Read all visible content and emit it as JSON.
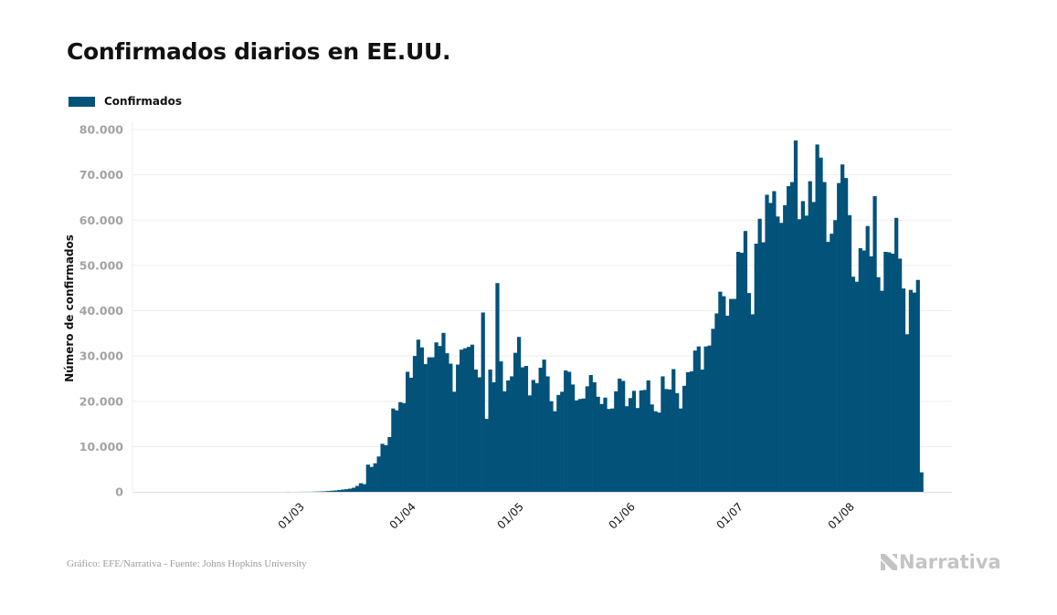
{
  "header": {
    "title": "Confirmados diarios en EE.UU."
  },
  "legend": {
    "label": "Confirmados",
    "color": "#02527a"
  },
  "footer": {
    "source": "Gráfico: EFE/Narrativa - Fuente: Johns Hopkins University",
    "brand": "Narrativa"
  },
  "chart_data": {
    "type": "bar",
    "title": "Confirmados diarios en EE.UU.",
    "xlabel": "",
    "ylabel": "Número de confirmados",
    "ylim": [
      0,
      80000
    ],
    "yticks": [
      0,
      10000,
      20000,
      30000,
      40000,
      50000,
      60000,
      70000,
      80000
    ],
    "ytick_labels": [
      "0",
      "10.000",
      "20.000",
      "30.000",
      "40.000",
      "50.000",
      "60.000",
      "70.000",
      "80.000"
    ],
    "x_start": "2020-01-22",
    "x_domain": [
      "2020-01-13",
      "2020-08-28"
    ],
    "xticks": [
      "2020-03-01",
      "2020-04-01",
      "2020-05-01",
      "2020-06-01",
      "2020-07-01",
      "2020-08-01"
    ],
    "xtick_labels": [
      "01/03",
      "01/04",
      "01/05",
      "01/06",
      "01/07",
      "01/08"
    ],
    "grid": true,
    "legend_position": "top-left",
    "series": [
      {
        "name": "Confirmados",
        "color": "#02527a",
        "values": [
          1,
          0,
          1,
          0,
          3,
          0,
          0,
          1,
          0,
          2,
          1,
          0,
          3,
          0,
          0,
          0,
          0,
          1,
          0,
          0,
          0,
          1,
          0,
          0,
          0,
          0,
          0,
          2,
          0,
          0,
          0,
          0,
          0,
          0,
          19,
          1,
          5,
          9,
          18,
          18,
          25,
          50,
          60,
          100,
          120,
          180,
          240,
          300,
          380,
          500,
          570,
          700,
          900,
          1300,
          1900,
          1700,
          6000,
          5500,
          6300,
          7800,
          10600,
          10300,
          12100,
          18400,
          18000,
          19800,
          19600,
          26500,
          25200,
          30000,
          33600,
          31900,
          28200,
          29700,
          29700,
          33000,
          32200,
          35100,
          30600,
          28300,
          22100,
          28100,
          31400,
          31700,
          32000,
          32500,
          27000,
          25300,
          39600,
          16100,
          27000,
          24200,
          46100,
          28800,
          22200,
          24600,
          25500,
          30700,
          34200,
          27500,
          27800,
          21300,
          24700,
          24000,
          27400,
          29200,
          25500,
          20000,
          17800,
          21400,
          22100,
          26800,
          26500,
          23700,
          20200,
          20500,
          20600,
          23300,
          25800,
          24200,
          21000,
          19400,
          20800,
          18300,
          18400,
          22200,
          25000,
          24500,
          18900,
          20700,
          22300,
          18500,
          22400,
          22500,
          24600,
          19300,
          17800,
          17500,
          25500,
          22700,
          22600,
          27100,
          21800,
          18400,
          23400,
          26400,
          26600,
          31200,
          32100,
          27000,
          32100,
          32300,
          36000,
          39400,
          44200,
          43200,
          38900,
          42600,
          42600,
          53000,
          52800,
          57600,
          43900,
          39200,
          54800,
          60300,
          55100,
          65600,
          63800,
          66400,
          60800,
          59400,
          63300,
          67500,
          68400,
          77600,
          60200,
          64200,
          61000,
          68600,
          64000,
          76700,
          73800,
          68400,
          55200,
          57000,
          60000,
          68200,
          72300,
          69300,
          61100,
          47500,
          46400,
          53800,
          53300,
          58700,
          52000,
          65300,
          47400,
          44400,
          53000,
          52900,
          52600,
          60500,
          51500,
          44900,
          34800,
          44600,
          44000,
          46800,
          4300
        ]
      }
    ]
  }
}
